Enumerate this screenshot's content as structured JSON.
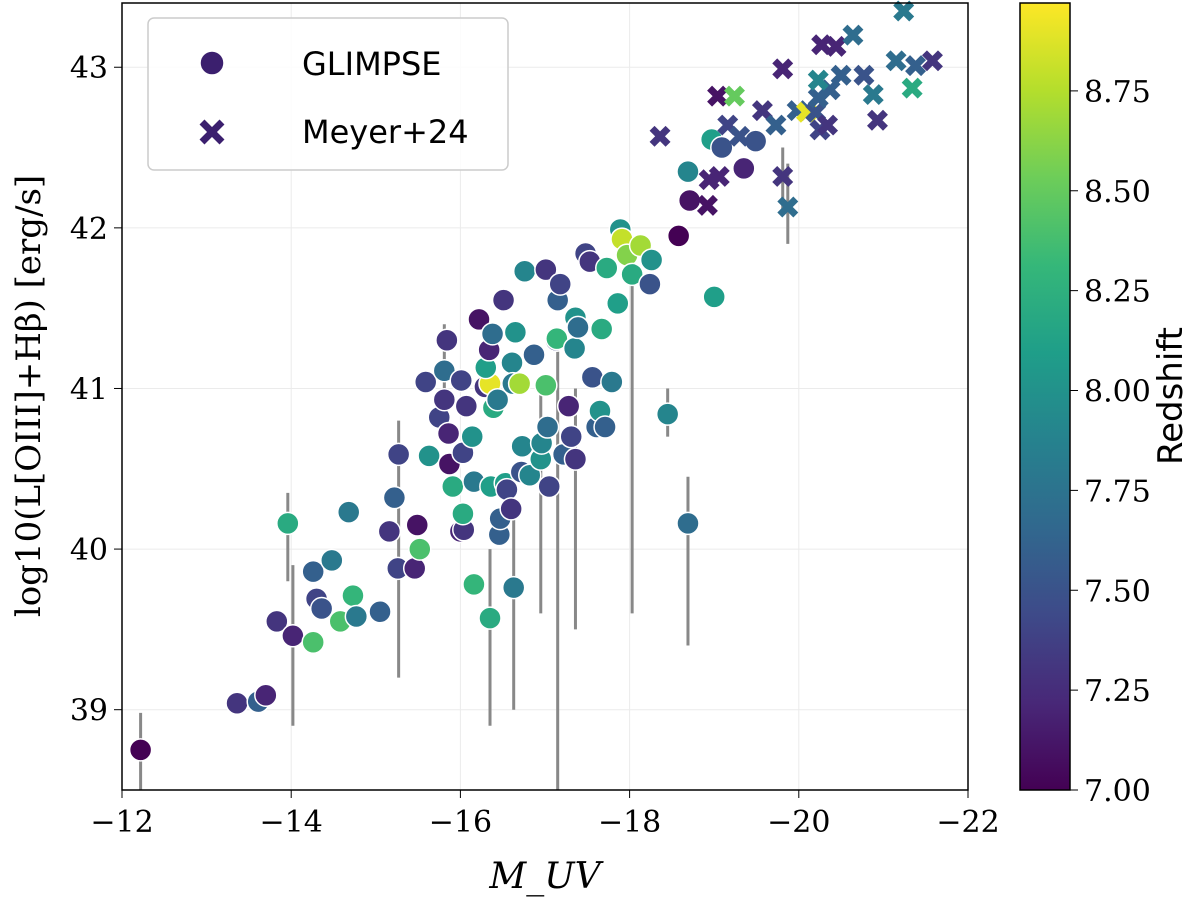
{
  "chart_data": {
    "type": "scatter",
    "title": "",
    "xlabel": "M_UV",
    "ylabel": "log10(L[OIII]+Hβ) [erg/s]",
    "xlim": [
      -12,
      -22
    ],
    "ylim": [
      38.5,
      43.4
    ],
    "xticks": [
      -12,
      -14,
      -16,
      -18,
      -20,
      -22
    ],
    "xtick_labels": [
      "−12",
      "−14",
      "−16",
      "−18",
      "−20",
      "−22"
    ],
    "yticks": [
      39,
      40,
      41,
      42,
      43
    ],
    "ytick_labels": [
      "39",
      "40",
      "41",
      "42",
      "43"
    ],
    "grid": true,
    "legend_position": "top-left",
    "colorbar": {
      "label": "Redshift",
      "range": [
        7.0,
        8.97
      ],
      "ticks": [
        7.0,
        7.25,
        7.5,
        7.75,
        8.0,
        8.25,
        8.5,
        8.75
      ],
      "tick_labels": [
        "7.00",
        "7.25",
        "7.50",
        "7.75",
        "8.00",
        "8.25",
        "8.50",
        "8.75"
      ],
      "colormap": "viridis"
    },
    "series": [
      {
        "name": "GLIMPSE",
        "marker": "circle",
        "point_format": [
          "M_UV",
          "logL",
          "redshift"
        ],
        "points": [
          [
            -12.22,
            38.75,
            7.0
          ],
          [
            -13.36,
            39.04,
            7.3
          ],
          [
            -13.61,
            39.05,
            7.6
          ],
          [
            -13.7,
            39.09,
            7.2
          ],
          [
            -13.83,
            39.55,
            7.3
          ],
          [
            -14.02,
            39.46,
            7.2
          ],
          [
            -13.96,
            40.16,
            8.2
          ],
          [
            -14.26,
            39.42,
            8.4
          ],
          [
            -14.3,
            39.69,
            7.4
          ],
          [
            -14.26,
            39.86,
            7.6
          ],
          [
            -14.36,
            39.63,
            7.5
          ],
          [
            -14.48,
            39.93,
            7.8
          ],
          [
            -14.68,
            40.23,
            7.8
          ],
          [
            -14.58,
            39.55,
            8.4
          ],
          [
            -14.73,
            39.71,
            8.3
          ],
          [
            -14.77,
            39.58,
            7.8
          ],
          [
            -15.05,
            39.61,
            7.6
          ],
          [
            -15.16,
            40.11,
            7.3
          ],
          [
            -15.22,
            40.32,
            7.6
          ],
          [
            -15.26,
            39.88,
            7.4
          ],
          [
            -15.27,
            40.59,
            7.4
          ],
          [
            -15.46,
            39.88,
            7.2
          ],
          [
            -15.52,
            40.0,
            8.4
          ],
          [
            -15.49,
            40.15,
            7.1
          ],
          [
            -15.59,
            41.04,
            7.4
          ],
          [
            -15.63,
            40.58,
            8.0
          ],
          [
            -15.75,
            40.82,
            7.4
          ],
          [
            -15.81,
            40.93,
            7.3
          ],
          [
            -15.86,
            40.72,
            7.2
          ],
          [
            -15.87,
            40.53,
            7.1
          ],
          [
            -15.91,
            40.39,
            8.2
          ],
          [
            -15.84,
            41.3,
            7.3
          ],
          [
            -15.81,
            41.11,
            7.7
          ],
          [
            -16.0,
            40.11,
            7.2
          ],
          [
            -16.04,
            40.12,
            7.3
          ],
          [
            -16.03,
            40.22,
            8.2
          ],
          [
            -16.01,
            41.05,
            7.4
          ],
          [
            -16.07,
            40.89,
            7.3
          ],
          [
            -16.03,
            40.6,
            7.4
          ],
          [
            -16.14,
            40.7,
            8.0
          ],
          [
            -16.16,
            39.78,
            8.3
          ],
          [
            -16.16,
            40.42,
            7.8
          ],
          [
            -16.22,
            41.43,
            7.1
          ],
          [
            -16.29,
            41.01,
            7.3
          ],
          [
            -16.35,
            41.03,
            8.9
          ],
          [
            -16.3,
            41.13,
            8.1
          ],
          [
            -16.34,
            41.24,
            7.2
          ],
          [
            -16.38,
            41.34,
            7.7
          ],
          [
            -16.39,
            40.88,
            8.2
          ],
          [
            -16.44,
            40.93,
            7.8
          ],
          [
            -16.36,
            40.39,
            8.1
          ],
          [
            -16.35,
            39.57,
            8.2
          ],
          [
            -16.46,
            40.09,
            7.6
          ],
          [
            -16.47,
            40.19,
            7.6
          ],
          [
            -16.53,
            40.41,
            8.1
          ],
          [
            -16.55,
            40.37,
            7.4
          ],
          [
            -16.6,
            40.25,
            7.3
          ],
          [
            -16.51,
            41.55,
            7.3
          ],
          [
            -16.61,
            41.16,
            7.9
          ],
          [
            -16.62,
            41.03,
            7.8
          ],
          [
            -16.65,
            41.35,
            8.0
          ],
          [
            -16.63,
            39.76,
            7.8
          ],
          [
            -16.7,
            41.03,
            8.7
          ],
          [
            -16.72,
            40.48,
            7.5
          ],
          [
            -16.73,
            40.64,
            7.9
          ],
          [
            -16.76,
            41.73,
            7.9
          ],
          [
            -16.82,
            40.46,
            7.9
          ],
          [
            -16.87,
            41.21,
            7.6
          ],
          [
            -16.95,
            40.56,
            8.0
          ],
          [
            -16.96,
            40.66,
            7.9
          ],
          [
            -17.01,
            41.02,
            8.4
          ],
          [
            -17.01,
            41.74,
            7.3
          ],
          [
            -17.03,
            40.76,
            7.7
          ],
          [
            -17.05,
            40.39,
            7.4
          ],
          [
            -17.13,
            41.3,
            7.4
          ],
          [
            -17.14,
            41.31,
            8.3
          ],
          [
            -17.15,
            41.55,
            7.6
          ],
          [
            -17.18,
            41.65,
            7.4
          ],
          [
            -17.22,
            40.59,
            7.6
          ],
          [
            -17.28,
            40.89,
            7.2
          ],
          [
            -17.31,
            40.7,
            7.4
          ],
          [
            -17.36,
            40.56,
            7.3
          ],
          [
            -17.35,
            41.25,
            7.9
          ],
          [
            -17.36,
            41.44,
            8.0
          ],
          [
            -17.39,
            41.38,
            7.7
          ],
          [
            -17.48,
            41.84,
            7.4
          ],
          [
            -17.53,
            41.79,
            7.3
          ],
          [
            -17.56,
            41.07,
            7.5
          ],
          [
            -17.61,
            40.76,
            7.6
          ],
          [
            -17.65,
            40.86,
            8.0
          ],
          [
            -17.71,
            40.76,
            7.6
          ],
          [
            -17.79,
            41.04,
            7.8
          ],
          [
            -17.73,
            41.75,
            8.2
          ],
          [
            -17.67,
            41.37,
            8.2
          ],
          [
            -17.89,
            41.99,
            8.0
          ],
          [
            -17.91,
            41.93,
            8.8
          ],
          [
            -17.97,
            41.83,
            8.6
          ],
          [
            -18.13,
            41.89,
            8.7
          ],
          [
            -18.03,
            41.71,
            8.2
          ],
          [
            -17.86,
            41.53,
            8.1
          ],
          [
            -18.24,
            41.65,
            7.5
          ],
          [
            -18.26,
            41.8,
            8.0
          ],
          [
            -18.58,
            41.95,
            7.0
          ],
          [
            -18.69,
            42.35,
            7.9
          ],
          [
            -18.71,
            42.17,
            7.1
          ],
          [
            -18.97,
            42.55,
            8.1
          ],
          [
            -19.09,
            42.5,
            7.5
          ],
          [
            -19.35,
            42.37,
            7.2
          ],
          [
            -19.49,
            42.54,
            7.5
          ],
          [
            -19.0,
            41.57,
            8.1
          ],
          [
            -18.45,
            40.84,
            7.9
          ],
          [
            -18.69,
            40.16,
            7.7
          ]
        ]
      },
      {
        "name": "Meyer+24",
        "marker": "x",
        "point_format": [
          "M_UV",
          "logL",
          "redshift"
        ],
        "points": [
          [
            -18.36,
            42.57,
            7.3
          ],
          [
            -18.92,
            42.14,
            7.1
          ],
          [
            -18.94,
            42.3,
            7.2
          ],
          [
            -19.06,
            42.32,
            7.2
          ],
          [
            -19.04,
            42.82,
            7.1
          ],
          [
            -19.24,
            42.82,
            8.5
          ],
          [
            -19.16,
            42.64,
            7.4
          ],
          [
            -19.3,
            42.57,
            7.5
          ],
          [
            -19.57,
            42.73,
            7.3
          ],
          [
            -19.73,
            42.64,
            7.6
          ],
          [
            -19.81,
            42.99,
            7.2
          ],
          [
            -19.81,
            42.32,
            7.3
          ],
          [
            -19.87,
            42.13,
            7.7
          ],
          [
            -19.98,
            42.73,
            7.6
          ],
          [
            -20.09,
            42.72,
            8.9
          ],
          [
            -20.2,
            42.72,
            7.5
          ],
          [
            -20.23,
            42.81,
            7.6
          ],
          [
            -20.27,
            43.14,
            7.2
          ],
          [
            -20.37,
            42.86,
            7.6
          ],
          [
            -20.44,
            43.13,
            7.2
          ],
          [
            -20.23,
            42.92,
            7.9
          ],
          [
            -20.25,
            42.61,
            7.4
          ],
          [
            -20.34,
            42.64,
            7.3
          ],
          [
            -20.5,
            42.95,
            7.6
          ],
          [
            -20.64,
            43.2,
            7.7
          ],
          [
            -20.77,
            42.95,
            7.5
          ],
          [
            -20.93,
            42.67,
            7.3
          ],
          [
            -20.88,
            42.83,
            7.8
          ],
          [
            -21.15,
            43.04,
            7.7
          ],
          [
            -21.24,
            43.35,
            7.8
          ],
          [
            -21.34,
            42.87,
            8.2
          ],
          [
            -21.38,
            43.01,
            7.6
          ],
          [
            -21.58,
            43.04,
            7.3
          ]
        ]
      }
    ],
    "errorbars_sample": {
      "point_format": [
        "M_UV",
        "logL",
        "ylo",
        "yhi"
      ],
      "points": [
        [
          -12.22,
          38.75,
          38.5,
          38.98
        ],
        [
          -17.15,
          40.0,
          38.5,
          41.3
        ],
        [
          -18.69,
          40.16,
          39.4,
          40.45
        ],
        [
          -18.03,
          41.71,
          39.6,
          41.9
        ],
        [
          -15.27,
          40.59,
          39.2,
          40.8
        ],
        [
          -16.35,
          39.57,
          38.9,
          40.0
        ],
        [
          -14.02,
          39.46,
          38.9,
          39.9
        ],
        [
          -13.96,
          40.16,
          39.8,
          40.35
        ],
        [
          -16.63,
          39.76,
          39.0,
          40.5
        ],
        [
          -17.36,
          40.56,
          39.5,
          41.0
        ],
        [
          -19.87,
          42.13,
          41.9,
          42.4
        ],
        [
          -19.81,
          42.32,
          42.1,
          42.5
        ],
        [
          -18.45,
          40.84,
          40.7,
          41.0
        ],
        [
          -15.81,
          41.11,
          40.7,
          41.4
        ],
        [
          -16.95,
          40.56,
          39.6,
          41.0
        ]
      ]
    }
  },
  "legend": {
    "glimpse": "GLIMPSE",
    "meyer": "Meyer+24"
  }
}
